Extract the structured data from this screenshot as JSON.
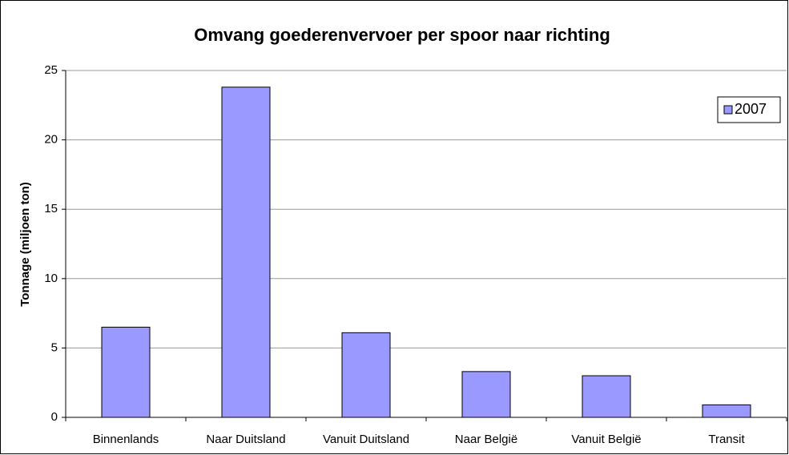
{
  "chart_data": {
    "type": "bar",
    "title": "Omvang goederenvervoer per spoor naar richting",
    "ylabel": "Tonnage (miljoen ton)",
    "categories": [
      "Binnenlands",
      "Naar Duitsland",
      "Vanuit Duitsland",
      "Naar België",
      "Vanuit België",
      "Transit"
    ],
    "series": [
      {
        "name": "2007",
        "color": "#9999ff",
        "values": [
          6.5,
          23.8,
          6.1,
          3.3,
          3.0,
          0.9
        ]
      }
    ],
    "ylim": [
      0,
      25
    ],
    "yticks": [
      0,
      5,
      10,
      15,
      20,
      25
    ],
    "grid": true,
    "legend": "top-right"
  }
}
